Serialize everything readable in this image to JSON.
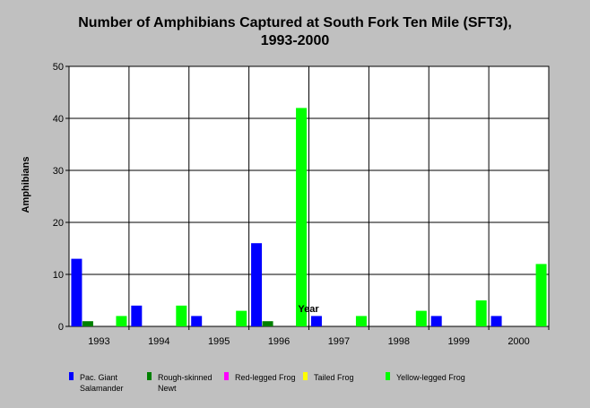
{
  "chart_data": {
    "type": "bar",
    "title": "Number of Amphibians Captured at South Fork Ten Mile (SFT3),",
    "subtitle": "1993-2000",
    "xlabel": "Year",
    "ylabel": "Amphibians",
    "ylim": [
      0,
      50
    ],
    "yticks": [
      "0",
      "10",
      "20",
      "30",
      "40",
      "50"
    ],
    "grid": true,
    "legend_position": "bottom",
    "categories": [
      "1993",
      "1994",
      "1995",
      "1996",
      "1997",
      "1998",
      "1999",
      "2000"
    ],
    "series": [
      {
        "name": "Pac. Giant Salamander",
        "name_lines": [
          "Pac. Giant",
          "Salamander"
        ],
        "color": "#0000ff",
        "values": [
          13,
          4,
          2,
          16,
          2,
          0,
          2,
          2
        ]
      },
      {
        "name": "Rough-skinned Newt",
        "name_lines": [
          "Rough-skinned",
          "Newt"
        ],
        "color": "#008000",
        "values": [
          1,
          0,
          0,
          1,
          0,
          0,
          0,
          0
        ]
      },
      {
        "name": "Red-legged Frog",
        "name_lines": [
          "Red-legged Frog"
        ],
        "color": "#ff00ff",
        "values": [
          0,
          0,
          0,
          0,
          0,
          0,
          0,
          0
        ]
      },
      {
        "name": "Tailed Frog",
        "name_lines": [
          "Tailed Frog"
        ],
        "color": "#ffff00",
        "values": [
          0,
          0,
          0,
          0,
          0,
          0,
          0,
          0
        ]
      },
      {
        "name": "Yellow-legged Frog",
        "name_lines": [
          "Yellow-legged Frog"
        ],
        "color": "#00ff00",
        "values": [
          2,
          4,
          3,
          42,
          2,
          3,
          5,
          12
        ]
      }
    ]
  }
}
